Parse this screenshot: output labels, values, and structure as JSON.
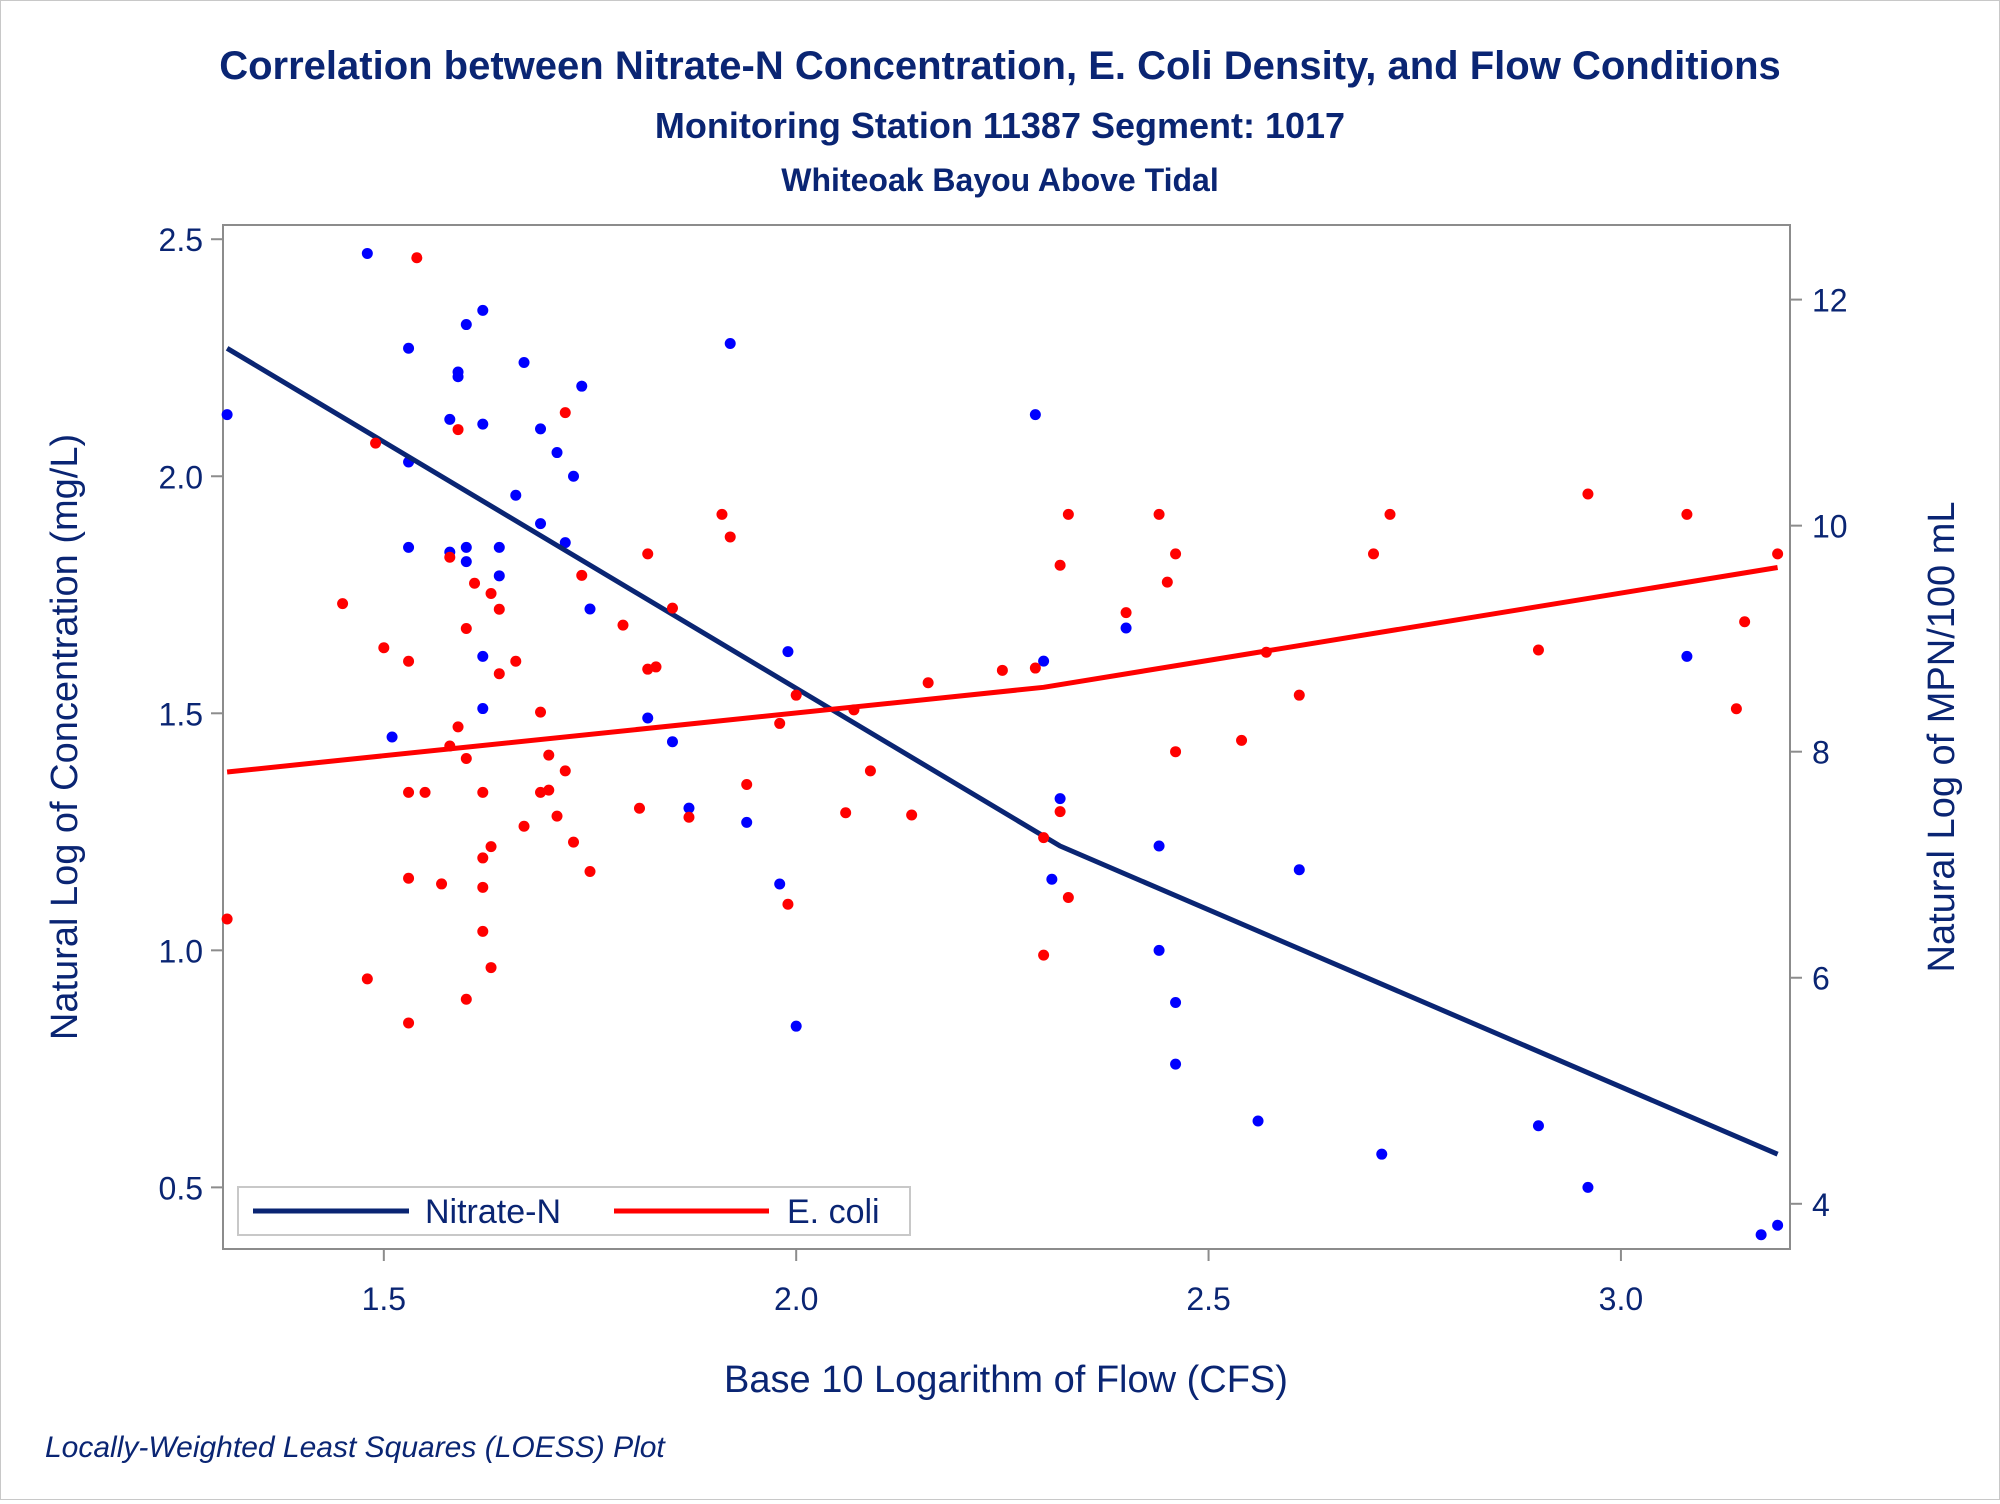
{
  "chart_data": {
    "type": "scatter",
    "title": "Correlation between Nitrate-N Concentration, E. Coli Density, and Flow Conditions",
    "subtitle": "Monitoring Station 11387 Segment: 1017",
    "subtitle2": "Whiteoak Bayou Above Tidal",
    "xlabel": "Base 10 Logarithm of Flow (CFS)",
    "ylabel": "Natural Log of Concentration (mg/L)",
    "y2label": "Natural Log of MPN/100 mL",
    "footnote": "Locally-Weighted Least Squares (LOESS) Plot",
    "xlim": [
      1.305,
      3.205
    ],
    "ylim": [
      0.37,
      2.53
    ],
    "y2lim": [
      3.6,
      12.66
    ],
    "xticks": [
      "1.5",
      "2.0",
      "2.5",
      "3.0"
    ],
    "yticks": [
      "0.5",
      "1.0",
      "1.5",
      "2.0",
      "2.5"
    ],
    "y2ticks": [
      "4",
      "6",
      "8",
      "10",
      "12"
    ],
    "grid": false,
    "legend_position": "bottom-left",
    "series": [
      {
        "name": "Nitrate-N",
        "axis": "left",
        "color": "#0000ff",
        "line_color": "#0a2573",
        "points": [
          [
            1.31,
            2.13
          ],
          [
            1.48,
            2.47
          ],
          [
            1.51,
            1.45
          ],
          [
            1.53,
            2.27
          ],
          [
            1.53,
            2.03
          ],
          [
            1.53,
            1.85
          ],
          [
            1.58,
            2.12
          ],
          [
            1.58,
            1.84
          ],
          [
            1.59,
            2.22
          ],
          [
            1.59,
            2.21
          ],
          [
            1.6,
            2.32
          ],
          [
            1.6,
            1.85
          ],
          [
            1.6,
            1.82
          ],
          [
            1.62,
            2.35
          ],
          [
            1.62,
            2.11
          ],
          [
            1.62,
            1.62
          ],
          [
            1.62,
            1.51
          ],
          [
            1.64,
            1.85
          ],
          [
            1.64,
            1.79
          ],
          [
            1.66,
            1.96
          ],
          [
            1.67,
            2.24
          ],
          [
            1.69,
            2.1
          ],
          [
            1.69,
            1.9
          ],
          [
            1.71,
            2.05
          ],
          [
            1.72,
            1.86
          ],
          [
            1.73,
            2.0
          ],
          [
            1.74,
            2.19
          ],
          [
            1.75,
            1.72
          ],
          [
            1.82,
            1.49
          ],
          [
            1.85,
            1.44
          ],
          [
            1.87,
            1.3
          ],
          [
            1.92,
            2.28
          ],
          [
            1.94,
            1.27
          ],
          [
            1.98,
            1.14
          ],
          [
            1.99,
            1.63
          ],
          [
            2.0,
            0.84
          ],
          [
            2.29,
            2.13
          ],
          [
            2.3,
            1.61
          ],
          [
            2.31,
            1.15
          ],
          [
            2.32,
            1.32
          ],
          [
            2.4,
            1.68
          ],
          [
            2.44,
            1.22
          ],
          [
            2.44,
            1.0
          ],
          [
            2.46,
            0.89
          ],
          [
            2.46,
            0.76
          ],
          [
            2.56,
            0.64
          ],
          [
            2.61,
            1.17
          ],
          [
            2.71,
            0.57
          ],
          [
            2.9,
            0.63
          ],
          [
            2.96,
            0.5
          ],
          [
            3.08,
            1.62
          ],
          [
            3.17,
            0.4
          ],
          [
            3.19,
            0.42
          ]
        ],
        "trend": [
          [
            1.31,
            2.27
          ],
          [
            2.32,
            1.22
          ],
          [
            3.19,
            0.57
          ]
        ]
      },
      {
        "name": "E. coli",
        "axis": "right",
        "color": "#ff0000",
        "line_color": "#ff0000",
        "points": [
          [
            1.31,
            6.52
          ],
          [
            1.45,
            9.31
          ],
          [
            1.48,
            5.99
          ],
          [
            1.49,
            10.73
          ],
          [
            1.5,
            8.92
          ],
          [
            1.53,
            8.8
          ],
          [
            1.53,
            7.64
          ],
          [
            1.53,
            6.88
          ],
          [
            1.53,
            5.6
          ],
          [
            1.54,
            12.37
          ],
          [
            1.55,
            7.64
          ],
          [
            1.57,
            6.83
          ],
          [
            1.58,
            9.72
          ],
          [
            1.58,
            8.05
          ],
          [
            1.59,
            10.85
          ],
          [
            1.59,
            8.22
          ],
          [
            1.6,
            9.09
          ],
          [
            1.6,
            7.94
          ],
          [
            1.6,
            5.81
          ],
          [
            1.61,
            9.49
          ],
          [
            1.62,
            7.64
          ],
          [
            1.62,
            7.06
          ],
          [
            1.62,
            6.8
          ],
          [
            1.62,
            6.41
          ],
          [
            1.63,
            9.4
          ],
          [
            1.63,
            7.16
          ],
          [
            1.63,
            6.09
          ],
          [
            1.64,
            9.26
          ],
          [
            1.64,
            8.69
          ],
          [
            1.66,
            8.8
          ],
          [
            1.67,
            7.34
          ],
          [
            1.69,
            8.35
          ],
          [
            1.69,
            7.64
          ],
          [
            1.7,
            7.97
          ],
          [
            1.7,
            7.66
          ],
          [
            1.71,
            7.43
          ],
          [
            1.72,
            11.0
          ],
          [
            1.72,
            7.83
          ],
          [
            1.73,
            7.2
          ],
          [
            1.74,
            9.56
          ],
          [
            1.75,
            6.94
          ],
          [
            1.79,
            9.12
          ],
          [
            1.81,
            7.5
          ],
          [
            1.82,
            8.73
          ],
          [
            1.82,
            9.75
          ],
          [
            1.83,
            8.75
          ],
          [
            1.85,
            9.27
          ],
          [
            1.87,
            7.42
          ],
          [
            1.91,
            10.1
          ],
          [
            1.92,
            9.9
          ],
          [
            1.94,
            7.71
          ],
          [
            1.98,
            8.25
          ],
          [
            1.99,
            6.65
          ],
          [
            2.0,
            8.5
          ],
          [
            2.06,
            7.46
          ],
          [
            2.07,
            8.37
          ],
          [
            2.09,
            7.83
          ],
          [
            2.14,
            7.44
          ],
          [
            2.16,
            8.61
          ],
          [
            2.25,
            8.72
          ],
          [
            2.29,
            8.74
          ],
          [
            2.3,
            6.2
          ],
          [
            2.3,
            7.24
          ],
          [
            2.32,
            9.65
          ],
          [
            2.32,
            7.47
          ],
          [
            2.33,
            6.71
          ],
          [
            2.33,
            10.1
          ],
          [
            2.4,
            9.23
          ],
          [
            2.44,
            10.1
          ],
          [
            2.45,
            9.5
          ],
          [
            2.46,
            9.75
          ],
          [
            2.46,
            8.0
          ],
          [
            2.54,
            8.1
          ],
          [
            2.57,
            8.88
          ],
          [
            2.61,
            8.5
          ],
          [
            2.7,
            9.75
          ],
          [
            2.72,
            10.1
          ],
          [
            2.9,
            8.9
          ],
          [
            2.96,
            10.28
          ],
          [
            3.08,
            10.1
          ],
          [
            3.14,
            8.38
          ],
          [
            3.15,
            9.15
          ],
          [
            3.19,
            9.75
          ]
        ],
        "trend": [
          [
            1.31,
            7.82
          ],
          [
            2.3,
            8.57
          ],
          [
            3.19,
            9.63
          ]
        ]
      }
    ]
  }
}
